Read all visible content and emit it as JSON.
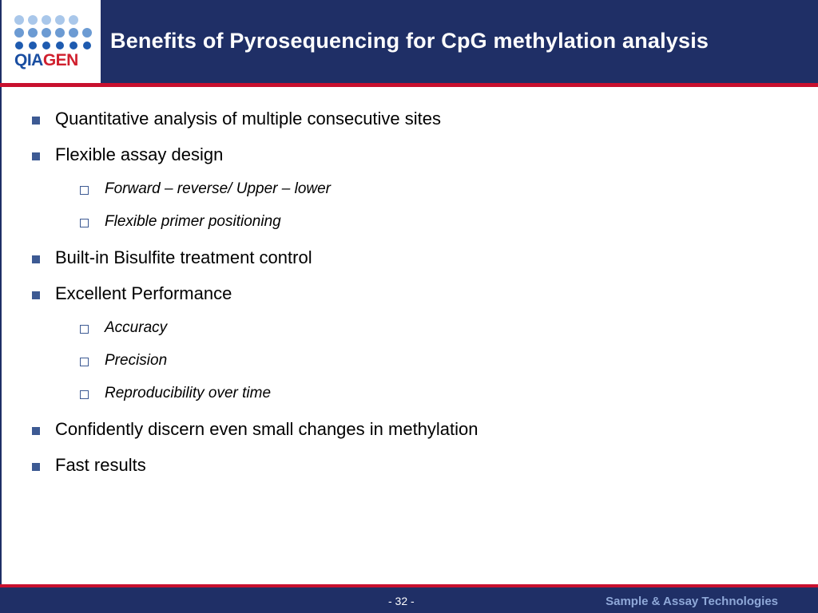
{
  "header": {
    "title": "Benefits of Pyrosequencing for CpG methylation analysis",
    "logo_text_a": "QIA",
    "logo_text_b": "GEN"
  },
  "colors": {
    "header_bg": "#1f2f66",
    "accent_red": "#c8102e",
    "bullet": "#3d5a93"
  },
  "bullets": [
    {
      "level": 1,
      "text": "Quantitative analysis of multiple consecutive sites"
    },
    {
      "level": 1,
      "text": "Flexible assay design"
    },
    {
      "level": 2,
      "text": "Forward – reverse/ Upper – lower"
    },
    {
      "level": 2,
      "text": "Flexible primer positioning"
    },
    {
      "level": 1,
      "text": "Built-in Bisulfite treatment control"
    },
    {
      "level": 1,
      "text": "Excellent Performance"
    },
    {
      "level": 2,
      "text": "Accuracy"
    },
    {
      "level": 2,
      "text": "Precision"
    },
    {
      "level": 2,
      "text": "Reproducibility over time"
    },
    {
      "level": 1,
      "text": "Confidently discern even small changes in methylation"
    },
    {
      "level": 1,
      "text": "Fast results"
    }
  ],
  "footer": {
    "page_number": "- 32 -",
    "brand": "Sample & Assay Technologies"
  }
}
